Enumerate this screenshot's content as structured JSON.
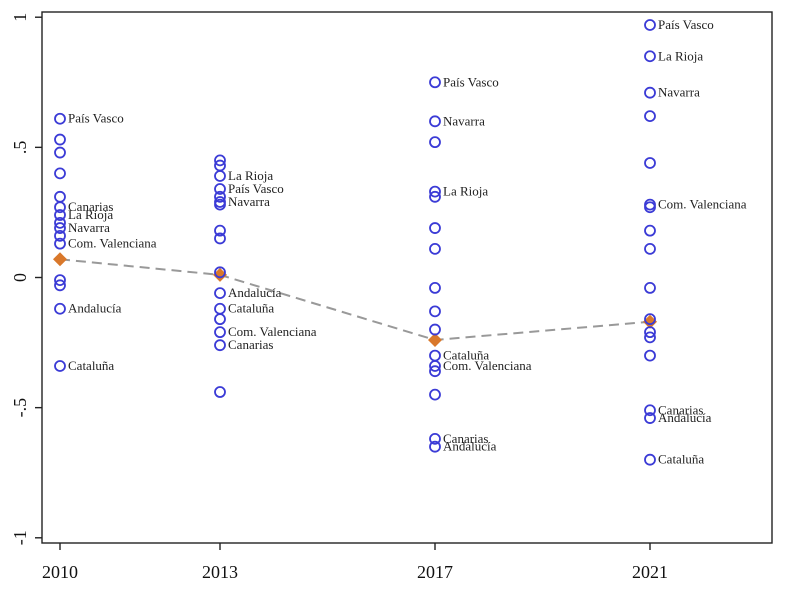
{
  "chart_data": {
    "type": "scatter",
    "title": "",
    "xlabel": "",
    "ylabel": "",
    "x_categories": [
      "2010",
      "2013",
      "2017",
      "2021"
    ],
    "ylim": [
      -1.02,
      1.02
    ],
    "y_ticks": [
      {
        "value": 1,
        "label": "1"
      },
      {
        "value": 0.5,
        "label": ".5"
      },
      {
        "value": 0,
        "label": "0"
      },
      {
        "value": -0.5,
        "label": "-.5"
      },
      {
        "value": -1,
        "label": "-1"
      }
    ],
    "grid": false,
    "colors": {
      "points": "#3b3bd6",
      "mean_marker": "#d9782b",
      "mean_line": "#999999"
    },
    "series": [
      {
        "x": "2010",
        "points": [
          {
            "y": 0.61,
            "label": "País Vasco"
          },
          {
            "y": 0.53,
            "label": ""
          },
          {
            "y": 0.48,
            "label": ""
          },
          {
            "y": 0.4,
            "label": ""
          },
          {
            "y": 0.31,
            "label": ""
          },
          {
            "y": 0.27,
            "label": "Canarias"
          },
          {
            "y": 0.24,
            "label": "La Rioja"
          },
          {
            "y": 0.21,
            "label": ""
          },
          {
            "y": 0.19,
            "label": "Navarra"
          },
          {
            "y": 0.16,
            "label": ""
          },
          {
            "y": 0.13,
            "label": "Com. Valenciana"
          },
          {
            "y": -0.01,
            "label": ""
          },
          {
            "y": -0.03,
            "label": ""
          },
          {
            "y": -0.12,
            "label": "Andalucía"
          },
          {
            "y": -0.34,
            "label": "Cataluña"
          }
        ]
      },
      {
        "x": "2013",
        "points": [
          {
            "y": 0.45,
            "label": ""
          },
          {
            "y": 0.43,
            "label": ""
          },
          {
            "y": 0.39,
            "label": "La Rioja"
          },
          {
            "y": 0.34,
            "label": "País Vasco"
          },
          {
            "y": 0.31,
            "label": ""
          },
          {
            "y": 0.29,
            "label": "Navarra"
          },
          {
            "y": 0.28,
            "label": ""
          },
          {
            "y": 0.18,
            "label": ""
          },
          {
            "y": 0.15,
            "label": ""
          },
          {
            "y": 0.02,
            "label": ""
          },
          {
            "y": -0.06,
            "label": "Andalucía"
          },
          {
            "y": -0.12,
            "label": "Cataluña"
          },
          {
            "y": -0.16,
            "label": ""
          },
          {
            "y": -0.21,
            "label": "Com. Valenciana"
          },
          {
            "y": -0.26,
            "label": "Canarias"
          },
          {
            "y": -0.44,
            "label": ""
          }
        ]
      },
      {
        "x": "2017",
        "points": [
          {
            "y": 0.75,
            "label": "País Vasco"
          },
          {
            "y": 0.6,
            "label": "Navarra"
          },
          {
            "y": 0.52,
            "label": ""
          },
          {
            "y": 0.33,
            "label": "La Rioja"
          },
          {
            "y": 0.31,
            "label": ""
          },
          {
            "y": 0.19,
            "label": ""
          },
          {
            "y": 0.11,
            "label": ""
          },
          {
            "y": -0.04,
            "label": ""
          },
          {
            "y": -0.13,
            "label": ""
          },
          {
            "y": -0.2,
            "label": ""
          },
          {
            "y": -0.3,
            "label": "Cataluña"
          },
          {
            "y": -0.34,
            "label": "Com. Valenciana"
          },
          {
            "y": -0.36,
            "label": ""
          },
          {
            "y": -0.45,
            "label": ""
          },
          {
            "y": -0.62,
            "label": "Canarias"
          },
          {
            "y": -0.65,
            "label": "Andalucía"
          }
        ]
      },
      {
        "x": "2021",
        "points": [
          {
            "y": 0.97,
            "label": "País Vasco"
          },
          {
            "y": 0.85,
            "label": "La Rioja"
          },
          {
            "y": 0.71,
            "label": "Navarra"
          },
          {
            "y": 0.62,
            "label": ""
          },
          {
            "y": 0.44,
            "label": ""
          },
          {
            "y": 0.28,
            "label": "Com. Valenciana"
          },
          {
            "y": 0.27,
            "label": ""
          },
          {
            "y": 0.18,
            "label": ""
          },
          {
            "y": 0.11,
            "label": ""
          },
          {
            "y": -0.04,
            "label": ""
          },
          {
            "y": -0.16,
            "label": ""
          },
          {
            "y": -0.21,
            "label": ""
          },
          {
            "y": -0.23,
            "label": ""
          },
          {
            "y": -0.3,
            "label": ""
          },
          {
            "y": -0.51,
            "label": "Canarias"
          },
          {
            "y": -0.54,
            "label": "Andalucía"
          },
          {
            "y": -0.7,
            "label": "Cataluña"
          }
        ]
      }
    ],
    "mean_series": {
      "name": "",
      "x": [
        "2010",
        "2013",
        "2017",
        "2021"
      ],
      "y": [
        0.07,
        0.01,
        -0.24,
        -0.17
      ]
    }
  }
}
